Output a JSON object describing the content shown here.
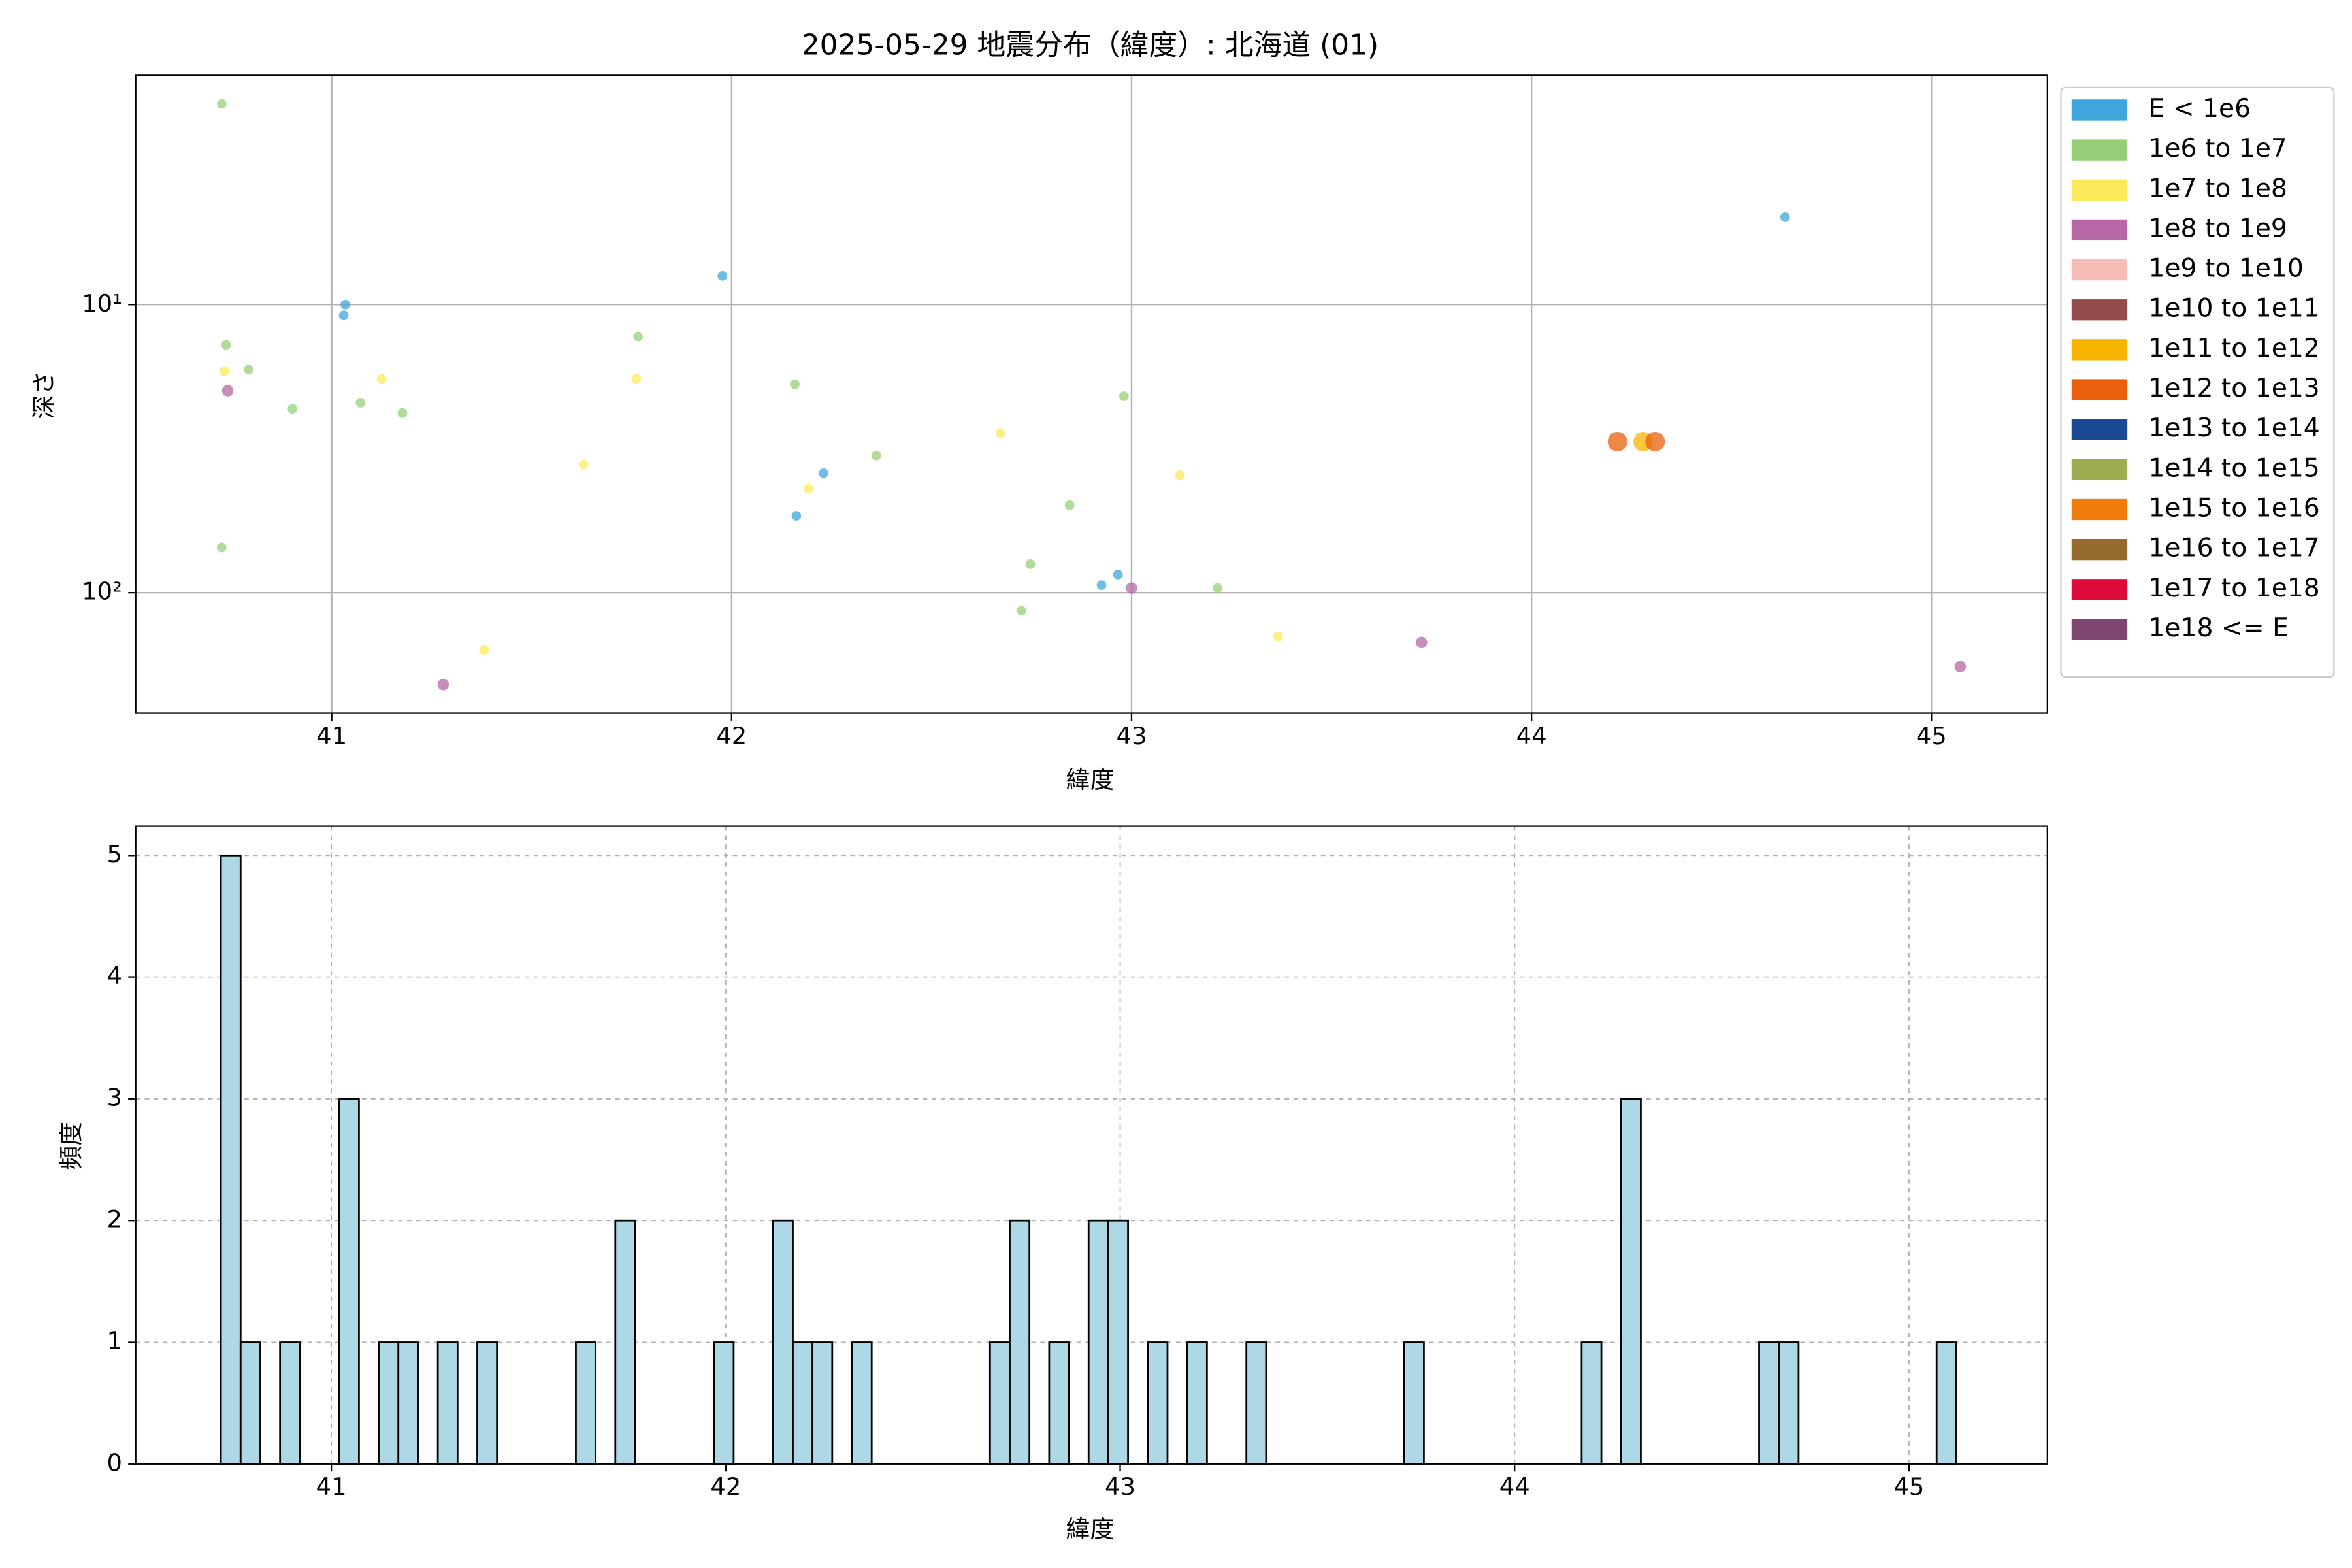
{
  "chart_data": [
    {
      "type": "scatter",
      "title": "2025-05-29 地震分布（緯度）: 北海道 (01)",
      "xlabel": "緯度",
      "ylabel": "深さ",
      "xlim": [
        40.51,
        45.29
      ],
      "ylim": [
        262,
        1.6
      ],
      "log_y": true,
      "xticks": [
        41,
        42,
        43,
        44,
        45
      ],
      "yticks": [
        {
          "value": 10,
          "label": "10¹"
        },
        {
          "value": 100,
          "label": "10²"
        }
      ],
      "grid": true,
      "legend": "outside upper right",
      "series": [
        {
          "name": "E < 1e6",
          "color": "#3fa6dd",
          "x": [
            41.03,
            41.034,
            41.977,
            42.162,
            42.23,
            42.925,
            42.966,
            44.634
          ],
          "values": [
            10.9,
            10,
            7.95,
            54.1,
            38.5,
            94.2,
            86.5,
            4.97
          ]
        },
        {
          "name": "1e6 to 1e7",
          "color": "#95cf77",
          "x": [
            40.725,
            40.736,
            40.792,
            40.725,
            40.902,
            41.072,
            41.177,
            41.766,
            42.158,
            42.362,
            42.981,
            42.845,
            42.747,
            42.725,
            43.215
          ],
          "values": [
            2.01,
            13.8,
            16.8,
            69.7,
            23.0,
            21.9,
            23.8,
            12.9,
            18.9,
            33.4,
            20.8,
            49.7,
            79.6,
            115.6,
            96.4
          ]
        },
        {
          "name": "1e7 to 1e8",
          "color": "#fbe95a",
          "x": [
            40.732,
            41.125,
            41.63,
            41.762,
            42.192,
            42.672,
            43.121,
            43.366,
            41.381
          ],
          "values": [
            17.0,
            18.1,
            35.9,
            18.1,
            43.5,
            27.9,
            39.1,
            141.9,
            158.2
          ]
        },
        {
          "name": "1e8 to 1e9",
          "color": "#b767a5",
          "x": [
            40.74,
            41.279,
            43.0,
            43.725,
            45.072
          ],
          "values": [
            19.9,
            208.5,
            96.4,
            148.9,
            180.7
          ]
        },
        {
          "name": "1e9 to 1e10",
          "color": "#f5bdb6",
          "x": [],
          "values": []
        },
        {
          "name": "1e10 to 1e11",
          "color": "#934c4b",
          "x": [],
          "values": []
        },
        {
          "name": "1e11 to 1e12",
          "color": "#f8b500",
          "x": [
            44.279
          ],
          "values": [
            29.9
          ]
        },
        {
          "name": "1e12 to 1e13",
          "color": "#ea5f0c",
          "x": [
            44.215,
            44.309
          ],
          "values": [
            29.9,
            29.9
          ]
        },
        {
          "name": "1e13 to 1e14",
          "color": "#1b4a94",
          "x": [],
          "values": []
        },
        {
          "name": "1e14 to 1e15",
          "color": "#9ead52",
          "x": [],
          "values": []
        },
        {
          "name": "1e15 to 1e16",
          "color": "#f07d0d",
          "x": [],
          "values": []
        },
        {
          "name": "1e16 to 1e17",
          "color": "#966a2c",
          "x": [],
          "values": []
        },
        {
          "name": "1e17 to 1e18",
          "color": "#de0a3a",
          "x": [],
          "values": []
        },
        {
          "name": "1e18 <= E",
          "color": "#7d4570",
          "x": [],
          "values": []
        }
      ]
    },
    {
      "type": "histogram",
      "xlabel": "緯度",
      "ylabel": "頻度",
      "color": "#add8e6",
      "edgecolor": "#000000",
      "xlim": [
        40.504,
        45.351
      ],
      "ylim": [
        0,
        5.24
      ],
      "xticks": [
        41,
        42,
        43,
        44,
        45
      ],
      "yticks": [
        0,
        1,
        2,
        3,
        4,
        5
      ],
      "grid": "dashed",
      "bins": [
        40.72,
        40.77,
        40.82,
        40.87,
        40.92,
        40.97,
        41.02,
        41.07,
        41.12,
        41.17,
        41.22,
        41.27,
        41.32,
        41.37,
        41.42,
        41.47,
        41.52,
        41.57,
        41.62,
        41.67,
        41.72,
        41.77,
        41.82,
        41.87,
        41.92,
        41.97,
        42.02,
        42.07,
        42.12,
        42.17,
        42.22,
        42.27,
        42.32,
        42.37,
        42.42,
        42.47,
        42.52,
        42.57,
        42.62,
        42.67,
        42.72,
        42.77,
        42.82,
        42.87,
        42.92,
        42.97,
        43.02,
        43.07,
        43.12,
        43.17,
        43.22,
        43.27,
        43.32,
        43.37,
        43.42,
        43.47,
        43.52,
        43.57,
        43.62,
        43.67,
        43.72,
        43.77,
        43.82,
        43.87,
        43.92,
        43.97,
        44.02,
        44.07,
        44.12,
        44.17,
        44.22,
        44.27,
        44.32,
        44.37,
        44.42,
        44.47,
        44.52,
        44.57,
        44.62,
        44.67,
        44.72,
        44.77,
        44.82,
        44.87,
        44.92,
        44.97,
        45.02,
        45.07,
        45.12
      ],
      "values": [
        5,
        1,
        0,
        1,
        0,
        0,
        3,
        0,
        1,
        1,
        0,
        1,
        0,
        1,
        0,
        0,
        0,
        0,
        1,
        0,
        2,
        0,
        0,
        0,
        0,
        1,
        0,
        0,
        2,
        1,
        1,
        0,
        1,
        0,
        0,
        0,
        0,
        0,
        0,
        1,
        2,
        0,
        1,
        0,
        2,
        2,
        0,
        1,
        0,
        1,
        0,
        0,
        1,
        0,
        0,
        0,
        0,
        0,
        0,
        0,
        1,
        0,
        0,
        0,
        0,
        0,
        0,
        0,
        0,
        1,
        0,
        3,
        0,
        0,
        0,
        0,
        0,
        0,
        1,
        1,
        0,
        0,
        0,
        0,
        0,
        0,
        0,
        1
      ]
    }
  ]
}
